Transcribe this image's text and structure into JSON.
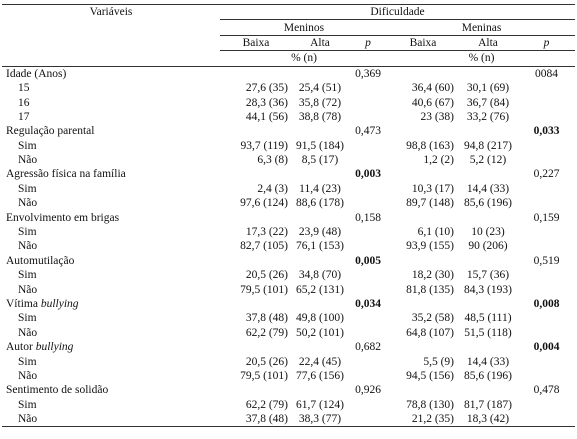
{
  "table": {
    "header": {
      "variables": "Variáveis",
      "difficulty": "Dificuldade",
      "groups": [
        "Meninos",
        "Meninas"
      ],
      "levels": [
        "Baixa",
        "Alta",
        "p",
        "Baixa",
        "Alta",
        "p"
      ],
      "unit": "% (n)"
    },
    "rows": [
      {
        "label": "Idade (Anos)",
        "p": [
          "0,369",
          "0084"
        ],
        "bold": [
          false,
          false
        ],
        "subs": [
          {
            "label": "15",
            "values": [
              "27,6 (35)",
              "25,4 (51)",
              "36,4 (60)",
              "30,1 (69)"
            ]
          },
          {
            "label": "16",
            "values": [
              "28,3 (36)",
              "35,8 (72)",
              "40,6 (67)",
              "36,7 (84)"
            ]
          },
          {
            "label": "17",
            "values": [
              "44,1 (56)",
              "38,8 (78)",
              "23 (38)",
              "33,2 (76)"
            ]
          }
        ]
      },
      {
        "label": "Regulação parental",
        "p": [
          "0,473",
          "0,033"
        ],
        "bold": [
          false,
          true
        ],
        "subs": [
          {
            "label": "Sim",
            "values": [
              "93,7 (119)",
              "91,5 (184)",
              "98,8 (163)",
              "94,8 (217)"
            ]
          },
          {
            "label": "Não",
            "values": [
              "6,3 (8)",
              "8,5 (17)",
              "1,2 (2)",
              "5,2 (12)"
            ]
          }
        ]
      },
      {
        "label": "Agressão física na família",
        "p": [
          "0,003",
          "0,227"
        ],
        "bold": [
          true,
          false
        ],
        "subs": [
          {
            "label": "Sim",
            "values": [
              "2,4 (3)",
              "11,4 (23)",
              "10,3 (17)",
              "14,4 (33)"
            ]
          },
          {
            "label": "Não",
            "values": [
              "97,6 (124)",
              "88,6 (178)",
              "89,7 (148)",
              "85,6 (196)"
            ]
          }
        ]
      },
      {
        "label": "Envolvimento em brigas",
        "p": [
          "0,158",
          "0,159"
        ],
        "bold": [
          false,
          false
        ],
        "subs": [
          {
            "label": "Sim",
            "values": [
              "17,3 (22)",
              "23,9 (48)",
              "6,1 (10)",
              "10 (23)"
            ]
          },
          {
            "label": "Não",
            "values": [
              "82,7 (105)",
              "76,1 (153)",
              "93,9 (155)",
              "90 (206)"
            ]
          }
        ]
      },
      {
        "label": "Automutilação",
        "p": [
          "0,005",
          "0,519"
        ],
        "bold": [
          true,
          false
        ],
        "subs": [
          {
            "label": "Sim",
            "values": [
              "20,5 (26)",
              "34,8 (70)",
              "18,2 (30)",
              "15,7 (36)"
            ]
          },
          {
            "label": "Não",
            "values": [
              "79,5 (101)",
              "65,2 (131)",
              "81,8 (135)",
              "84,3 (193)"
            ]
          }
        ]
      },
      {
        "label": "Vítima",
        "label_italic": "bullying",
        "p": [
          "0,034",
          "0,008"
        ],
        "bold": [
          true,
          true
        ],
        "subs": [
          {
            "label": "Sim",
            "values": [
              "37,8 (48)",
              "49,8 (100)",
              "35,2 (58)",
              "48,5 (111)"
            ]
          },
          {
            "label": "Não",
            "values": [
              "62,2 (79)",
              "50,2 (101)",
              "64,8 (107)",
              "51,5 (118)"
            ]
          }
        ]
      },
      {
        "label": "Autor",
        "label_italic": "bullying",
        "p": [
          "0,682",
          "0,004"
        ],
        "bold": [
          false,
          true
        ],
        "subs": [
          {
            "label": "Sim",
            "values": [
              "20,5 (26)",
              "22,4 (45)",
              "5,5 (9)",
              "14,4 (33)"
            ]
          },
          {
            "label": "Não",
            "values": [
              "79,5 (101)",
              "77,6 (156)",
              "94,5 (156)",
              "85,6 (196)"
            ]
          }
        ]
      },
      {
        "label": "Sentimento de solidão",
        "p": [
          "0,926",
          "0,478"
        ],
        "bold": [
          false,
          false
        ],
        "subs": [
          {
            "label": "Sim",
            "values": [
              "62,2 (79)",
              "61,7 (124)",
              "78,8 (130)",
              "81,7 (187)"
            ]
          },
          {
            "label": "Não",
            "values": [
              "37,8 (48)",
              "38,3 (77)",
              "21,2 (35)",
              "18,3 (42)"
            ]
          }
        ]
      }
    ]
  }
}
